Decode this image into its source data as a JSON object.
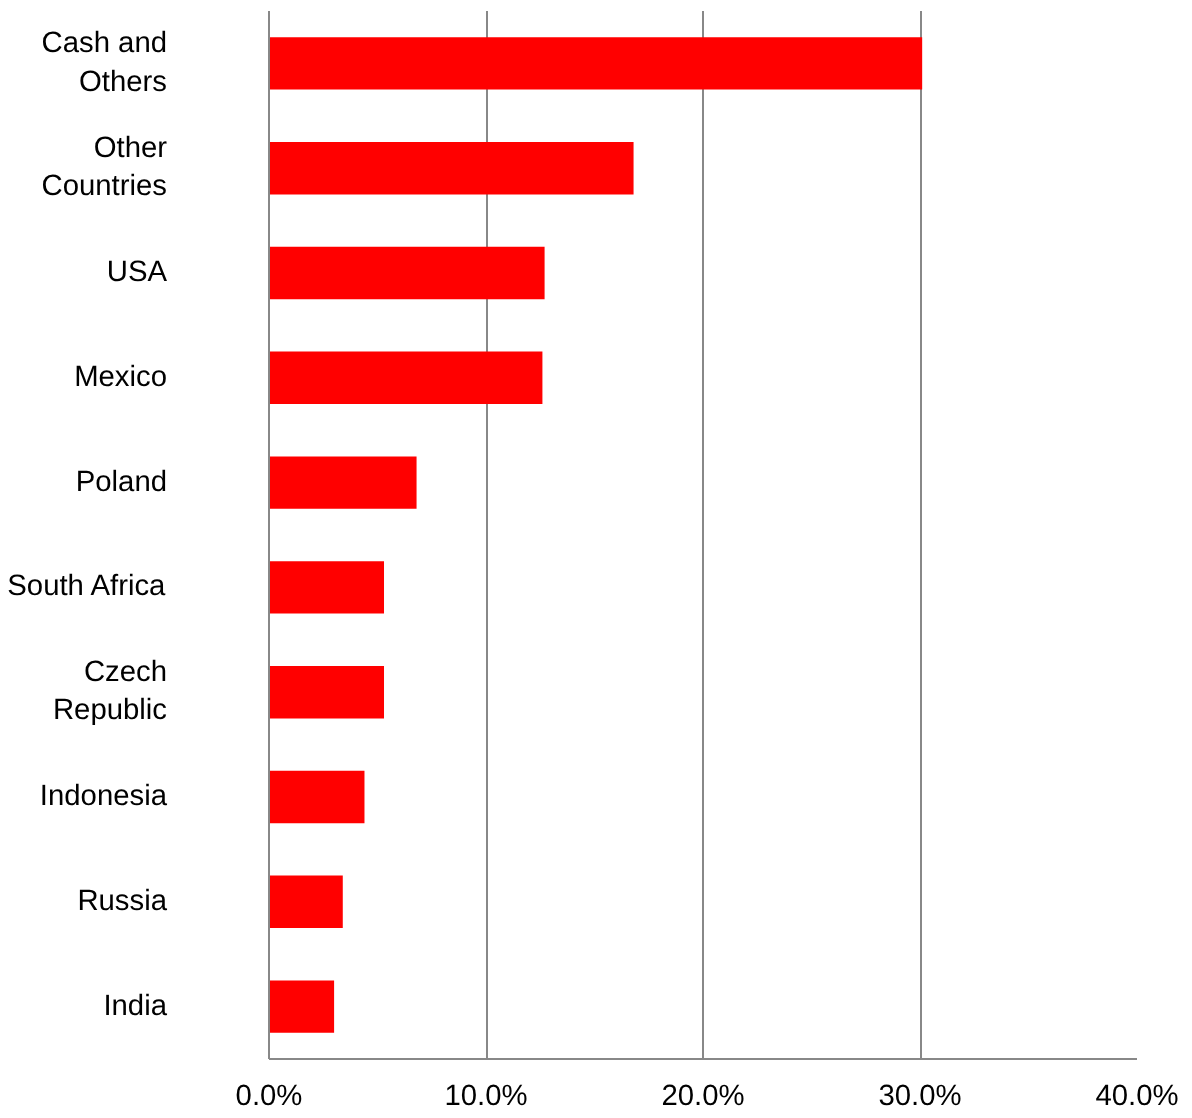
{
  "chart_data": {
    "type": "bar",
    "orientation": "horizontal",
    "categories": [
      "Cash and\nOthers",
      "Other\nCountries",
      "USA",
      "Mexico",
      "Poland",
      "South Africa",
      "Czech\nRepublic",
      "Indonesia",
      "Russia",
      "India"
    ],
    "values": [
      30.1,
      16.8,
      12.7,
      12.6,
      6.8,
      5.3,
      5.3,
      4.4,
      3.4,
      3.0
    ],
    "color": "#ff0000",
    "xlim": [
      0,
      40
    ],
    "xticks": [
      {
        "value": 0,
        "label": "0.0%"
      },
      {
        "value": 10,
        "label": "10.0%"
      },
      {
        "value": 20,
        "label": "20.0%"
      },
      {
        "value": 30,
        "label": "30.0%"
      },
      {
        "value": 40,
        "label": "40.0%"
      }
    ],
    "grid": "x"
  }
}
